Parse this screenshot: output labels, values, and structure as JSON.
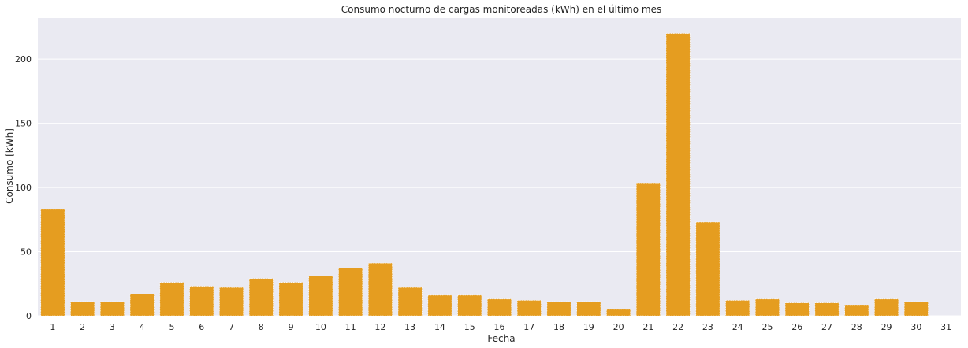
{
  "chart_data": {
    "type": "bar",
    "title": "Consumo nocturno de cargas monitoreadas (kWh) en el último mes",
    "xlabel": "Fecha",
    "ylabel": "Consumo [kWh]",
    "categories": [
      "1",
      "2",
      "3",
      "4",
      "5",
      "6",
      "7",
      "8",
      "9",
      "10",
      "11",
      "12",
      "13",
      "14",
      "15",
      "16",
      "17",
      "18",
      "19",
      "20",
      "21",
      "22",
      "23",
      "24",
      "25",
      "26",
      "27",
      "28",
      "29",
      "30",
      "31"
    ],
    "values": [
      83,
      11,
      11,
      17,
      26,
      23,
      22,
      29,
      26,
      31,
      37,
      41,
      22,
      16,
      16,
      13,
      12,
      11,
      11,
      5,
      103,
      220,
      73,
      12,
      13,
      10,
      10,
      8,
      13,
      11,
      0
    ],
    "yticks": [
      0,
      50,
      100,
      150,
      200
    ],
    "ylim": [
      0,
      232
    ],
    "grid": true,
    "colors": {
      "bar": "#e59d20",
      "background": "#eaeaf2",
      "grid": "#ffffff"
    }
  }
}
